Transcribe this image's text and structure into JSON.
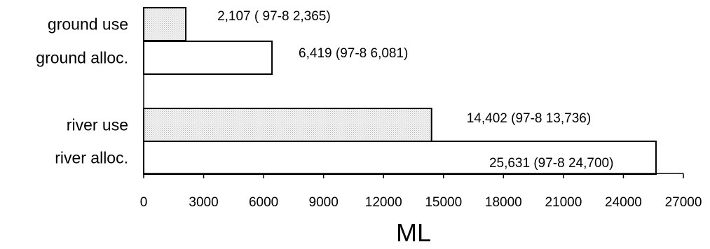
{
  "chart_data": {
    "type": "bar",
    "orientation": "horizontal",
    "categories": [
      "ground use",
      "ground alloc.",
      "river use",
      "river alloc."
    ],
    "values": [
      2107,
      6419,
      14402,
      25631
    ],
    "data_labels": [
      "2,107 ( 97-8  2,365)",
      "6,419 (97-8 6,081)",
      "14,402  (97-8 13,736)",
      "25,631  (97-8 24,700)"
    ],
    "fills": [
      "dotted",
      "white",
      "dotted",
      "white"
    ],
    "xlim": [
      0,
      27000
    ],
    "xticks": [
      0,
      3000,
      6000,
      9000,
      12000,
      15000,
      18000,
      21000,
      24000,
      27000
    ],
    "xlabel": "ML",
    "ylabel": "",
    "title": "",
    "grid": false,
    "legend": "none"
  }
}
